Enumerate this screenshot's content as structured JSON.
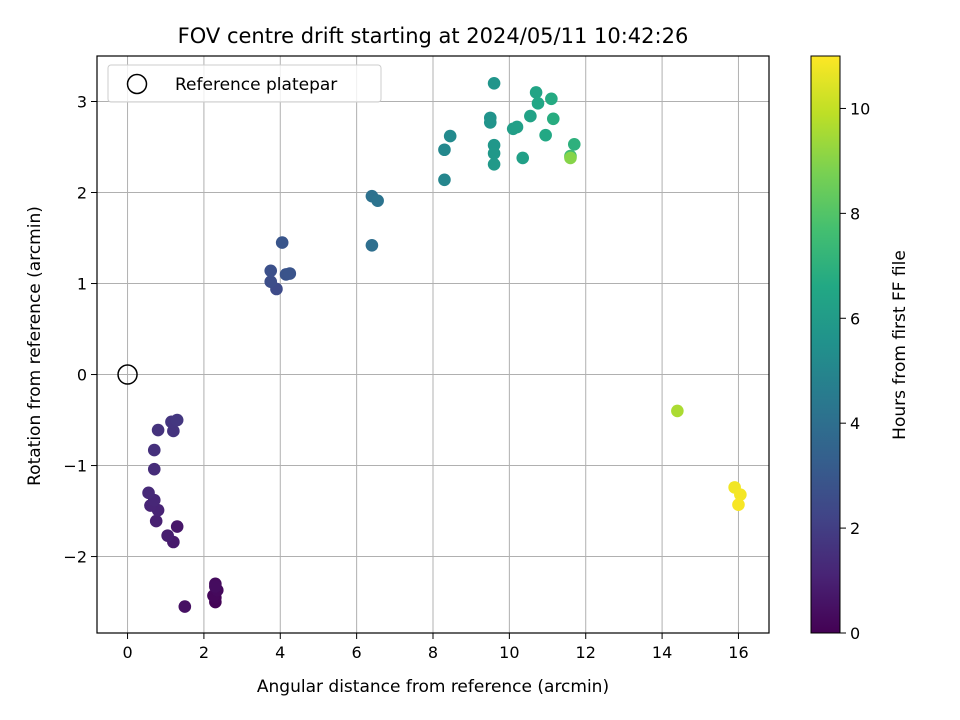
{
  "chart_data": {
    "type": "scatter",
    "title": "FOV centre drift starting at 2024/05/11 10:42:26",
    "xlabel": "Angular distance from reference (arcmin)",
    "ylabel": "Rotation from reference (arcmin)",
    "xlim": [
      -0.8,
      16.8
    ],
    "ylim": [
      -2.84,
      3.5
    ],
    "xticks": [
      0,
      2,
      4,
      6,
      8,
      10,
      12,
      14,
      16
    ],
    "yticks": [
      -2,
      -1,
      0,
      1,
      2,
      3
    ],
    "grid": true,
    "legend": {
      "location": "upper-left",
      "entries": [
        {
          "label": "Reference platepar",
          "marker": "open-circle"
        }
      ]
    },
    "reference_point": {
      "x": 0,
      "y": 0
    },
    "colorbar": {
      "label": "Hours from first FF file",
      "range": [
        0,
        11
      ],
      "ticks": [
        0,
        2,
        4,
        6,
        8,
        10
      ],
      "colormap": "viridis"
    },
    "points": [
      {
        "x": 2.3,
        "y": -2.5,
        "hours": 0.1
      },
      {
        "x": 2.3,
        "y": -2.45,
        "hours": 0.15
      },
      {
        "x": 2.25,
        "y": -2.43,
        "hours": 0.2
      },
      {
        "x": 2.35,
        "y": -2.37,
        "hours": 0.25
      },
      {
        "x": 2.3,
        "y": -2.3,
        "hours": 0.3
      },
      {
        "x": 2.3,
        "y": -2.33,
        "hours": 0.35
      },
      {
        "x": 1.5,
        "y": -2.55,
        "hours": 0.5
      },
      {
        "x": 1.3,
        "y": -1.67,
        "hours": 0.7
      },
      {
        "x": 1.2,
        "y": -1.84,
        "hours": 0.8
      },
      {
        "x": 1.05,
        "y": -1.77,
        "hours": 0.9
      },
      {
        "x": 0.75,
        "y": -1.61,
        "hours": 1.0
      },
      {
        "x": 0.8,
        "y": -1.49,
        "hours": 1.1
      },
      {
        "x": 0.6,
        "y": -1.44,
        "hours": 1.15
      },
      {
        "x": 0.7,
        "y": -1.38,
        "hours": 1.2
      },
      {
        "x": 0.55,
        "y": -1.3,
        "hours": 1.3
      },
      {
        "x": 0.7,
        "y": -1.04,
        "hours": 1.4
      },
      {
        "x": 0.7,
        "y": -0.83,
        "hours": 1.5
      },
      {
        "x": 0.8,
        "y": -0.61,
        "hours": 1.6
      },
      {
        "x": 1.2,
        "y": -0.62,
        "hours": 1.65
      },
      {
        "x": 1.15,
        "y": -0.52,
        "hours": 1.7
      },
      {
        "x": 1.3,
        "y": -0.5,
        "hours": 1.75
      },
      {
        "x": 3.9,
        "y": 0.94,
        "hours": 2.5
      },
      {
        "x": 3.75,
        "y": 1.02,
        "hours": 2.6
      },
      {
        "x": 3.75,
        "y": 1.14,
        "hours": 2.7
      },
      {
        "x": 4.15,
        "y": 1.1,
        "hours": 2.8
      },
      {
        "x": 4.25,
        "y": 1.11,
        "hours": 2.85
      },
      {
        "x": 4.05,
        "y": 1.45,
        "hours": 2.9
      },
      {
        "x": 6.4,
        "y": 1.42,
        "hours": 4.0
      },
      {
        "x": 6.4,
        "y": 1.96,
        "hours": 4.1
      },
      {
        "x": 6.55,
        "y": 1.91,
        "hours": 4.2
      },
      {
        "x": 8.3,
        "y": 2.14,
        "hours": 5.0
      },
      {
        "x": 8.3,
        "y": 2.47,
        "hours": 5.1
      },
      {
        "x": 8.45,
        "y": 2.62,
        "hours": 5.2
      },
      {
        "x": 9.5,
        "y": 2.82,
        "hours": 5.6
      },
      {
        "x": 9.5,
        "y": 2.77,
        "hours": 5.65
      },
      {
        "x": 9.6,
        "y": 3.2,
        "hours": 5.7
      },
      {
        "x": 9.6,
        "y": 2.52,
        "hours": 5.8
      },
      {
        "x": 9.6,
        "y": 2.43,
        "hours": 5.85
      },
      {
        "x": 9.6,
        "y": 2.31,
        "hours": 5.9
      },
      {
        "x": 10.1,
        "y": 2.7,
        "hours": 6.1
      },
      {
        "x": 10.2,
        "y": 2.72,
        "hours": 6.15
      },
      {
        "x": 10.35,
        "y": 2.38,
        "hours": 6.2
      },
      {
        "x": 10.55,
        "y": 2.84,
        "hours": 6.3
      },
      {
        "x": 10.7,
        "y": 3.1,
        "hours": 6.4
      },
      {
        "x": 10.75,
        "y": 2.98,
        "hours": 6.5
      },
      {
        "x": 10.95,
        "y": 2.63,
        "hours": 6.6
      },
      {
        "x": 11.1,
        "y": 3.03,
        "hours": 6.7
      },
      {
        "x": 11.15,
        "y": 2.81,
        "hours": 6.8
      },
      {
        "x": 11.7,
        "y": 2.53,
        "hours": 7.0
      },
      {
        "x": 11.6,
        "y": 2.4,
        "hours": 7.5
      },
      {
        "x": 11.6,
        "y": 2.38,
        "hours": 9.0
      },
      {
        "x": 14.4,
        "y": -0.4,
        "hours": 9.6
      },
      {
        "x": 15.9,
        "y": -1.24,
        "hours": 10.8
      },
      {
        "x": 16.05,
        "y": -1.32,
        "hours": 10.85
      },
      {
        "x": 16.0,
        "y": -1.43,
        "hours": 10.9
      }
    ]
  }
}
